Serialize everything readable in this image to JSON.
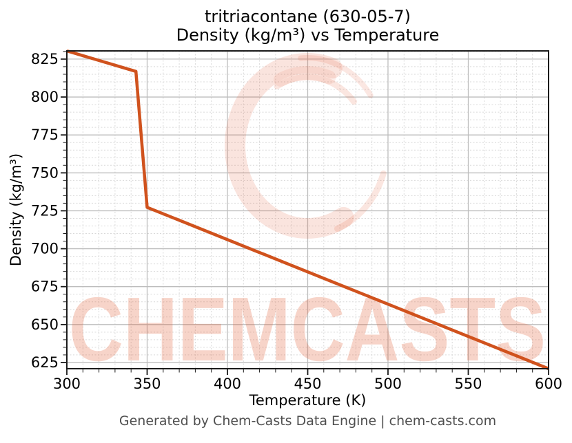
{
  "title": {
    "line1": "tritriacontane (630-05-7)",
    "line2": "Density (kg/m³) vs Temperature"
  },
  "watermark": {
    "text": "CHEMCASTS",
    "color": "#e25830"
  },
  "footer": {
    "text": "Generated by Chem-Casts Data Engine | chem-casts.com"
  },
  "chart_data": {
    "type": "line",
    "title": "tritriacontane (630-05-7)",
    "subtitle": "Density (kg/m³) vs Temperature",
    "xlabel": "Temperature (K)",
    "ylabel": "Density (kg/m³)",
    "series": [
      {
        "name": "Density",
        "x": [
          300,
          343,
          350,
          600
        ],
        "y": [
          830.4,
          816.9,
          727.3,
          620.9
        ]
      }
    ],
    "line_color": "#d0521d",
    "xlim": [
      300,
      600
    ],
    "ylim": [
      620.9,
      830.4
    ],
    "x_ticks": [
      300,
      350,
      400,
      450,
      500,
      550,
      600
    ],
    "y_ticks": [
      625,
      650,
      675,
      700,
      725,
      750,
      775,
      800,
      825
    ],
    "x_minor_step": 10,
    "y_minor_step": 5,
    "grid": "major+minor",
    "legend": "none"
  }
}
